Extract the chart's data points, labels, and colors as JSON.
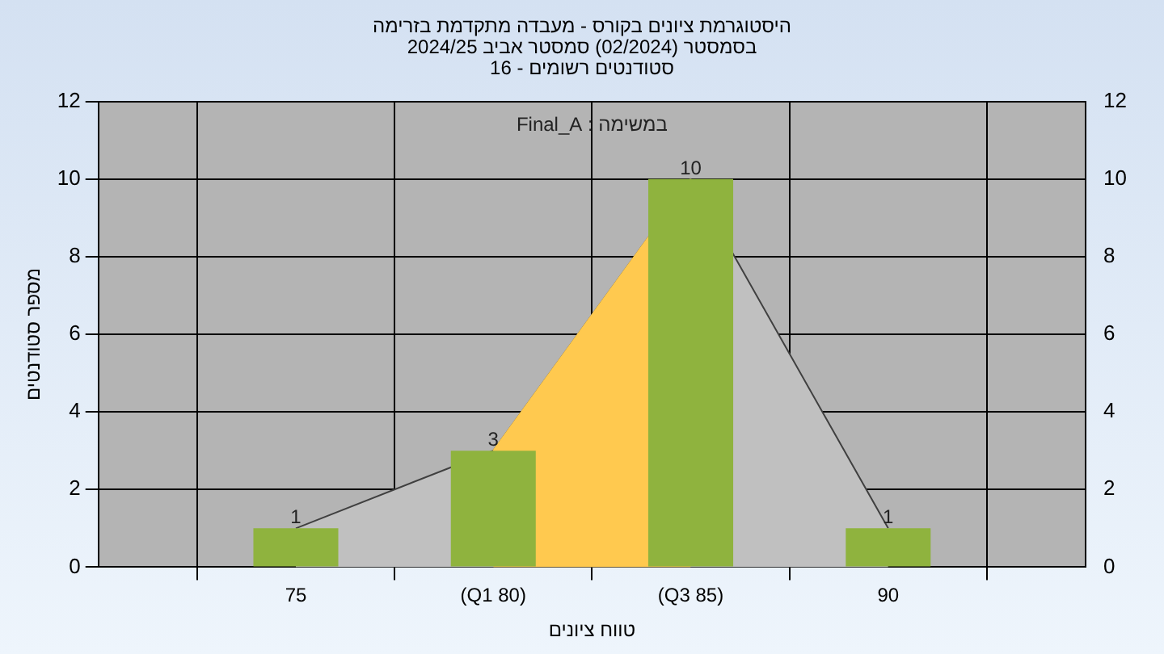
{
  "chart_data": {
    "type": "bar",
    "title": "היסטוגרמת ציונים בקורס - מעבדה מתקדמת בזרימה",
    "subtitle": "בסמסטר  (02/2024)  סמסטר אביב 2024/25\nסטודנטים רשומים - 16",
    "xlabel": "טווח ציונים",
    "ylabel": "מספר סטודנטים",
    "annotations": [
      "במשימה : Final_A"
    ],
    "categories": [
      null,
      "75",
      "(Q1 80)",
      "(Q3 85)",
      "90",
      null
    ],
    "series": [
      {
        "type": "area",
        "color": "#c0c0c0",
        "values": [
          null,
          1,
          3,
          10,
          1,
          null
        ]
      },
      {
        "type": "area",
        "color": "#ffc94f",
        "values": [
          null,
          null,
          3,
          10,
          null,
          null
        ]
      },
      {
        "color": "#8fb33e",
        "values": [
          null,
          1,
          3,
          10,
          1,
          null
        ],
        "value_labels": [
          null,
          "1",
          "3",
          "10",
          "1",
          null
        ]
      }
    ],
    "ylim": [
      0,
      12
    ],
    "yticks": [
      0,
      2,
      4,
      6,
      8,
      10,
      12
    ],
    "y2lim": [
      0,
      12
    ],
    "y2ticks": [
      0,
      2,
      4,
      6,
      8,
      10,
      12
    ],
    "grid": true,
    "legend": false
  }
}
